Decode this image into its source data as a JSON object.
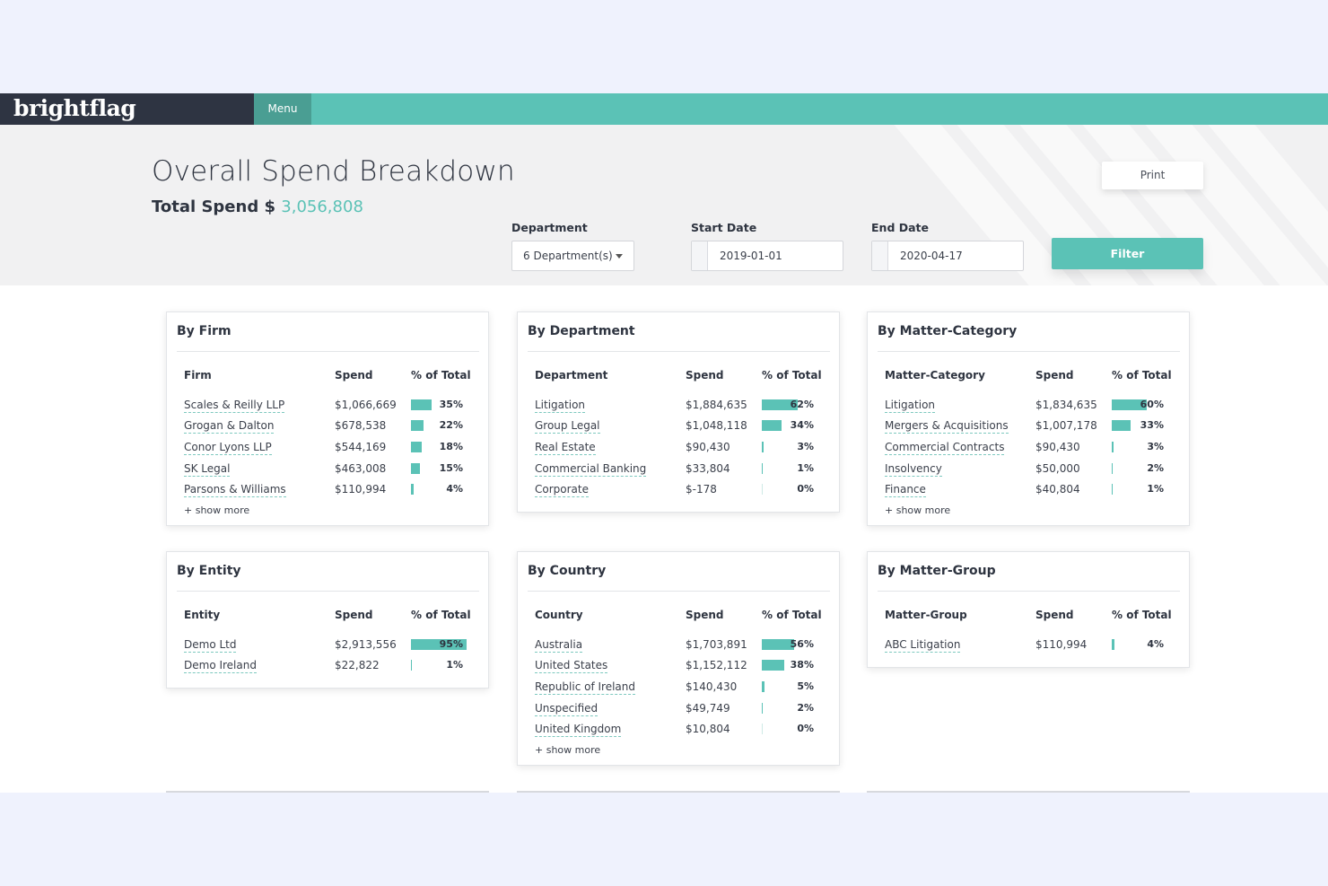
{
  "brand": {
    "name": "brightflag"
  },
  "nav": {
    "menu_label": "Menu"
  },
  "header": {
    "title": "Overall Spend Breakdown",
    "total_label": "Total Spend $",
    "total_value": "3,056,808",
    "print_label": "Print"
  },
  "filters": {
    "department_label": "Department",
    "department_value": "6 Department(s)",
    "start_label": "Start Date",
    "start_value": "2019-01-01",
    "end_label": "End Date",
    "end_value": "2020-04-17",
    "filter_label": "Filter"
  },
  "colors": {
    "accent": "#5bc2b6",
    "brand_bg": "#2e3442"
  },
  "cards": [
    {
      "id": "firm",
      "title": "By Firm",
      "columns": [
        "Firm",
        "Spend",
        "% of Total"
      ],
      "rows": [
        {
          "name": "Scales & Reilly LLP",
          "spend": "$1,066,669",
          "pct": "35%",
          "frac": 0.35
        },
        {
          "name": "Grogan & Dalton",
          "spend": "$678,538",
          "pct": "22%",
          "frac": 0.22
        },
        {
          "name": "Conor Lyons LLP",
          "spend": "$544,169",
          "pct": "18%",
          "frac": 0.18
        },
        {
          "name": "SK Legal",
          "spend": "$463,008",
          "pct": "15%",
          "frac": 0.15
        },
        {
          "name": "Parsons & Williams",
          "spend": "$110,994",
          "pct": "4%",
          "frac": 0.04
        }
      ],
      "show_more": "+ show more"
    },
    {
      "id": "department",
      "title": "By Department",
      "columns": [
        "Department",
        "Spend",
        "% of Total"
      ],
      "rows": [
        {
          "name": "Litigation",
          "spend": "$1,884,635",
          "pct": "62%",
          "frac": 0.62
        },
        {
          "name": "Group Legal",
          "spend": "$1,048,118",
          "pct": "34%",
          "frac": 0.34
        },
        {
          "name": "Real Estate",
          "spend": "$90,430",
          "pct": "3%",
          "frac": 0.03
        },
        {
          "name": "Commercial Banking",
          "spend": "$33,804",
          "pct": "1%",
          "frac": 0.01
        },
        {
          "name": "Corporate",
          "spend": "$-178",
          "pct": "0%",
          "frac": 0
        }
      ]
    },
    {
      "id": "matter-category",
      "title": "By Matter-Category",
      "columns": [
        "Matter-Category",
        "Spend",
        "% of Total"
      ],
      "rows": [
        {
          "name": "Litigation",
          "spend": "$1,834,635",
          "pct": "60%",
          "frac": 0.6
        },
        {
          "name": "Mergers & Acquisitions",
          "spend": "$1,007,178",
          "pct": "33%",
          "frac": 0.33
        },
        {
          "name": "Commercial Contracts",
          "spend": "$90,430",
          "pct": "3%",
          "frac": 0.03
        },
        {
          "name": "Insolvency",
          "spend": "$50,000",
          "pct": "2%",
          "frac": 0.02
        },
        {
          "name": "Finance",
          "spend": "$40,804",
          "pct": "1%",
          "frac": 0.01
        }
      ],
      "show_more": "+ show more"
    },
    {
      "id": "entity",
      "title": "By Entity",
      "columns": [
        "Entity",
        "Spend",
        "% of Total"
      ],
      "rows": [
        {
          "name": "Demo Ltd",
          "spend": "$2,913,556",
          "pct": "95%",
          "frac": 0.95
        },
        {
          "name": "Demo Ireland",
          "spend": "$22,822",
          "pct": "1%",
          "frac": 0.01
        }
      ]
    },
    {
      "id": "country",
      "title": "By Country",
      "columns": [
        "Country",
        "Spend",
        "% of Total"
      ],
      "rows": [
        {
          "name": "Australia",
          "spend": "$1,703,891",
          "pct": "56%",
          "frac": 0.56
        },
        {
          "name": "United States",
          "spend": "$1,152,112",
          "pct": "38%",
          "frac": 0.38
        },
        {
          "name": "Republic of Ireland",
          "spend": "$140,430",
          "pct": "5%",
          "frac": 0.05
        },
        {
          "name": "Unspecified",
          "spend": "$49,749",
          "pct": "2%",
          "frac": 0.02
        },
        {
          "name": "United Kingdom",
          "spend": "$10,804",
          "pct": "0%",
          "frac": 0
        }
      ],
      "show_more": "+ show more"
    },
    {
      "id": "matter-group",
      "title": "By Matter-Group",
      "columns": [
        "Matter-Group",
        "Spend",
        "% of Total"
      ],
      "rows": [
        {
          "name": "ABC Litigation",
          "spend": "$110,994",
          "pct": "4%",
          "frac": 0.04
        }
      ]
    }
  ]
}
